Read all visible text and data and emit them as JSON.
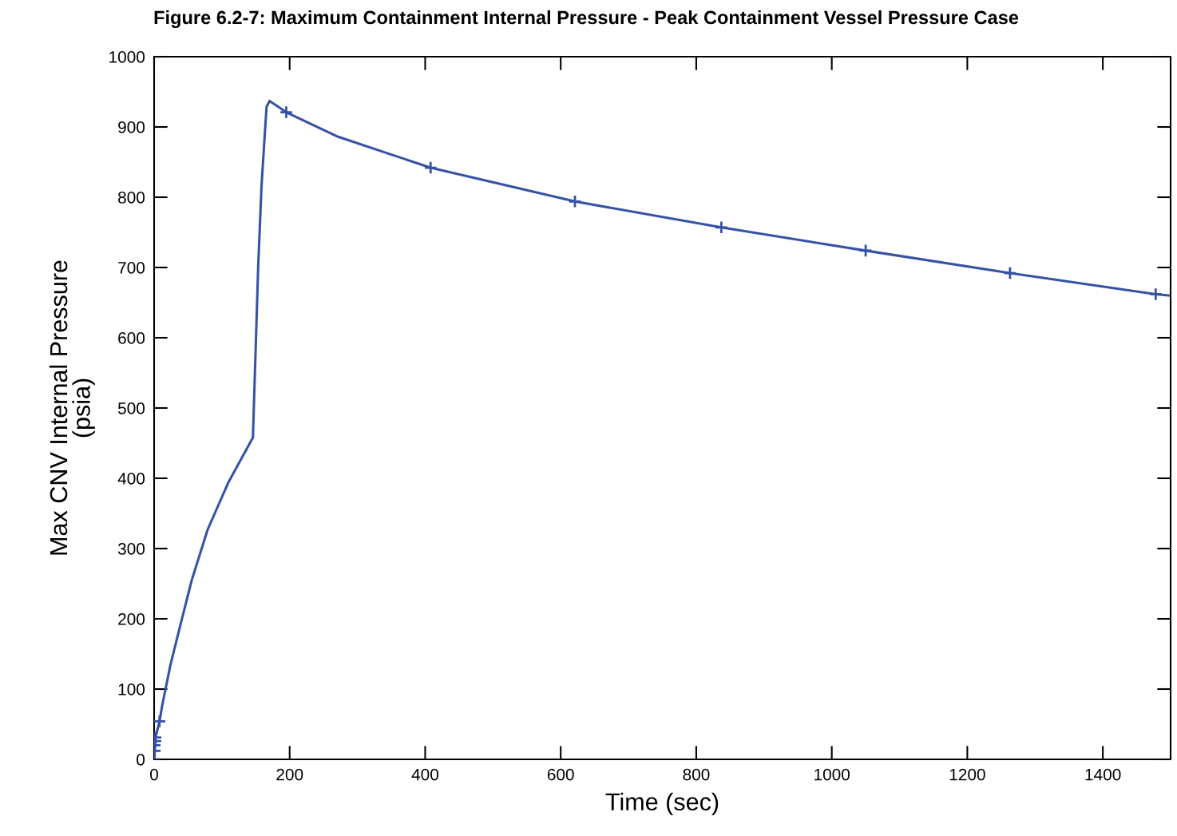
{
  "chart_data": {
    "type": "line",
    "title": "Figure 6.2-7: Maximum Containment Internal Pressure - Peak Containment Vessel Pressure Case",
    "xlabel": "Time (sec)",
    "ylabel": "Max CNV Internal Pressure\n(psia)",
    "xlim": [
      0,
      1500
    ],
    "xticks": [
      0,
      200,
      400,
      600,
      800,
      1000,
      1200,
      1400
    ],
    "ylim": [
      0,
      1000
    ],
    "yticks": [
      0,
      100,
      200,
      300,
      400,
      500,
      600,
      700,
      800,
      900,
      1000
    ],
    "grid": false,
    "series": [
      {
        "color": "#3652a5",
        "marker": "none",
        "x": [
          0,
          1,
          2,
          8,
          12,
          24,
          37.7,
          55.5,
          79,
          110,
          145.8,
          150,
          153.6,
          158.5,
          163.4,
          166,
          170.5,
          195,
          271.5,
          408,
          621,
          837,
          1050,
          1263,
          1478,
          1500
        ],
        "values": [
          0,
          20,
          31,
          54,
          77,
          134,
          187,
          255,
          327,
          395,
          458,
          589,
          702,
          816,
          891,
          929,
          937,
          921,
          886,
          842,
          794,
          757,
          724,
          692,
          662,
          660
        ]
      },
      {
        "type": "scatter",
        "color": "#3652a5",
        "marker": "cross",
        "x": [
          0,
          1,
          1,
          2,
          2,
          8,
          195,
          408,
          621,
          837,
          1050,
          1263,
          1478
        ],
        "values": [
          0,
          12,
          20,
          26,
          31,
          54,
          921,
          842,
          794,
          757,
          724,
          692,
          662
        ]
      }
    ]
  }
}
